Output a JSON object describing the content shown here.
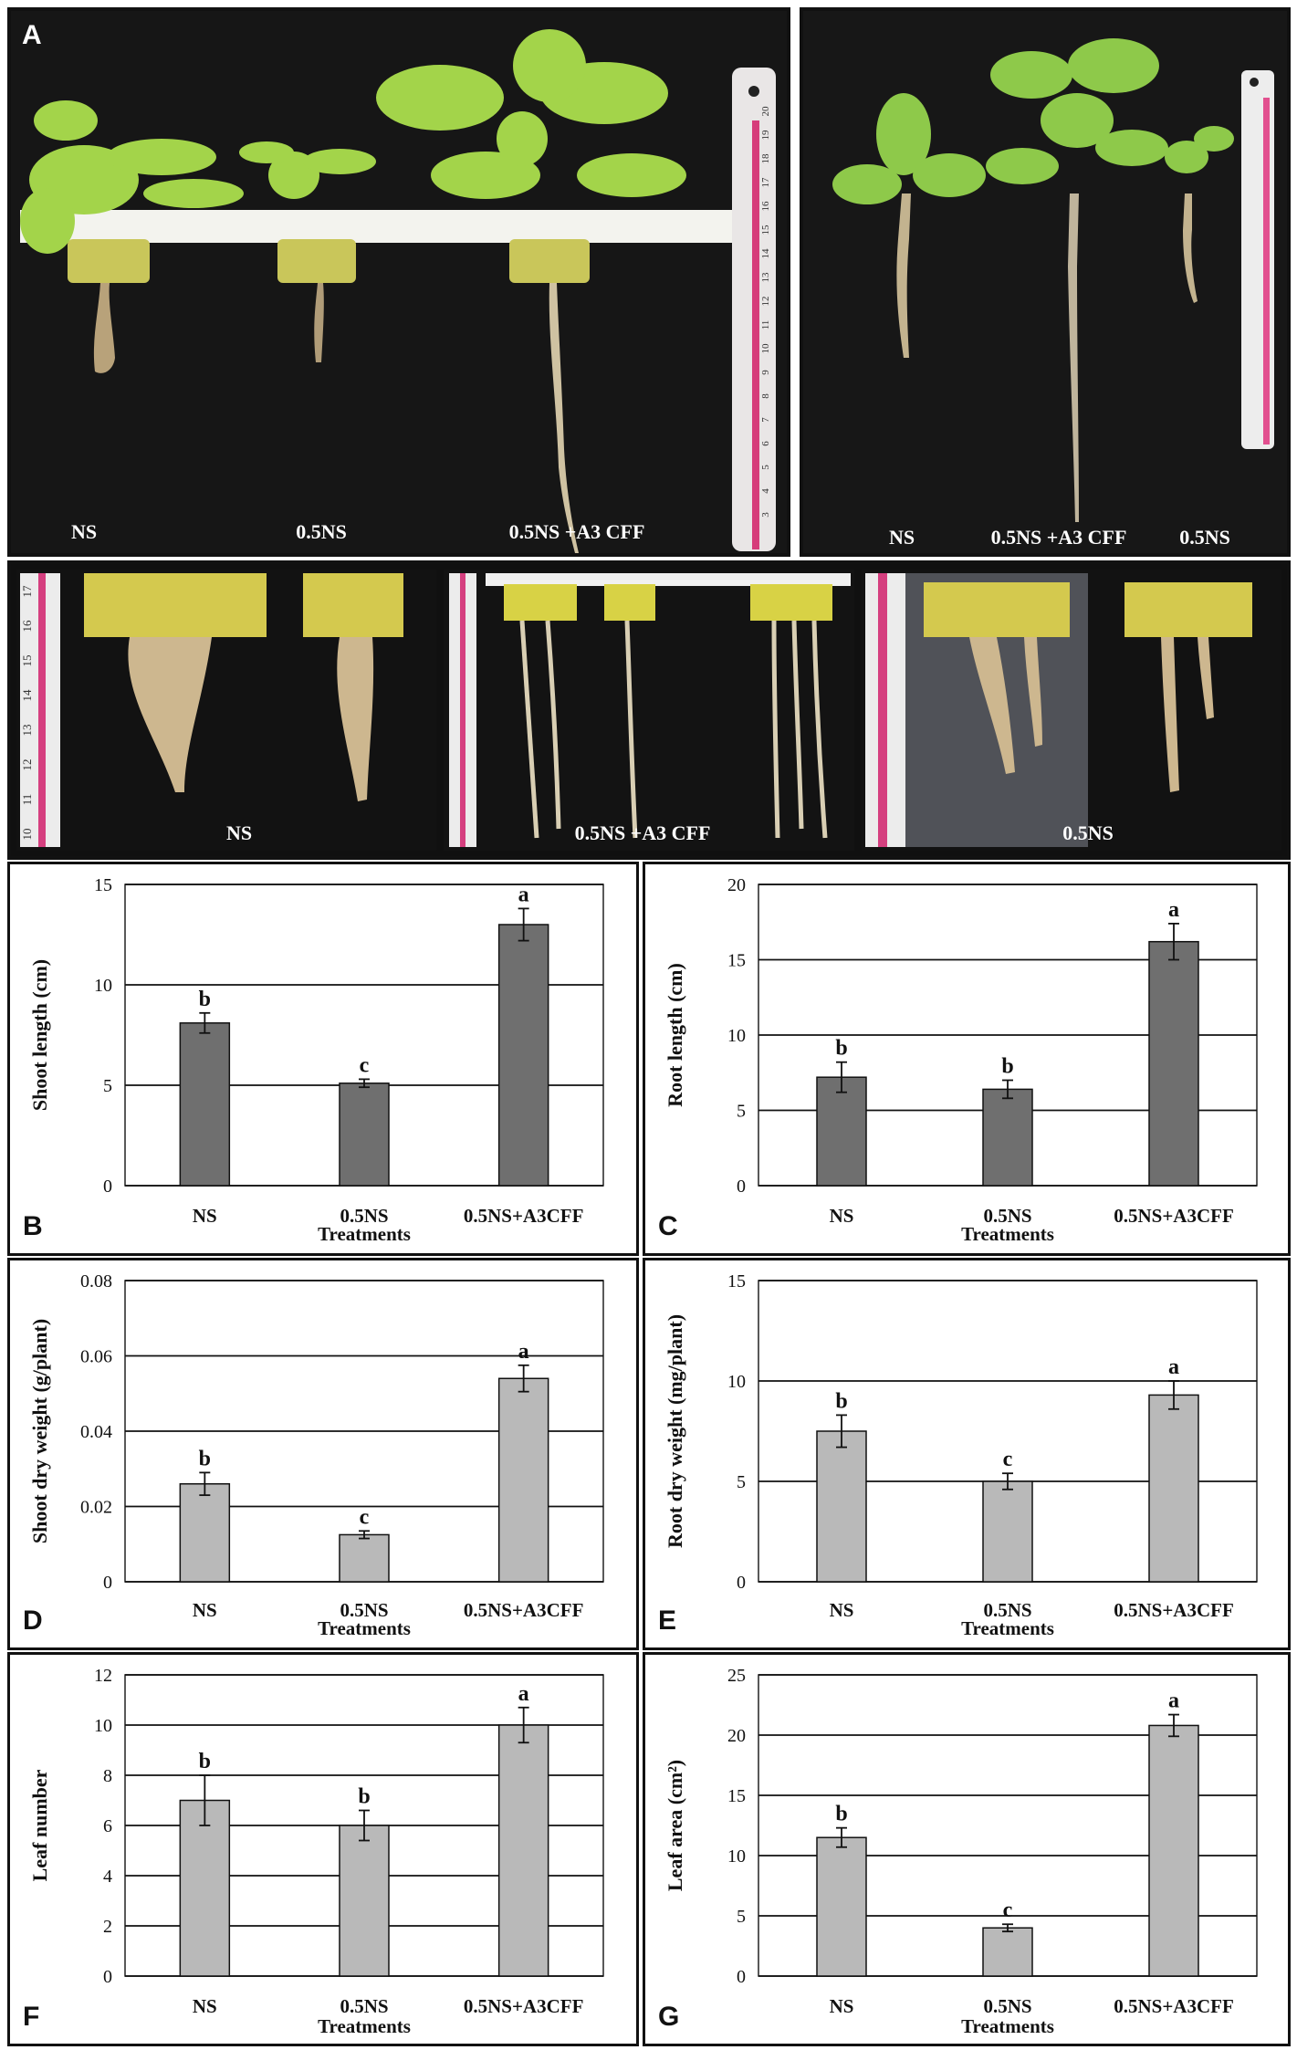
{
  "panel_letters": {
    "a": "A",
    "b": "B",
    "c": "C",
    "d": "D",
    "e": "E",
    "f": "F",
    "g": "G"
  },
  "photos": {
    "top_left_labels": [
      "NS",
      "0.5NS",
      "0.5NS +A3 CFF"
    ],
    "top_right_labels": [
      "NS",
      "0.5NS +A3 CFF",
      "0.5NS"
    ],
    "roots_labels": [
      "NS",
      "0.5NS +A3 CFF",
      "0.5NS"
    ],
    "ruler_top_left_ticks": [
      "20",
      "19",
      "18",
      "17",
      "16",
      "15",
      "14",
      "13",
      "12",
      "11",
      "10",
      "9",
      "8",
      "7",
      "6",
      "5",
      "4",
      "3"
    ],
    "ruler_roots_ticks": [
      "17",
      "16",
      "15",
      "14",
      "13",
      "12",
      "11",
      "10"
    ]
  },
  "colors": {
    "bar_dark": "#6f6f6f",
    "bar_light": "#b9b9b9",
    "background_photo": "#151515",
    "leaf_green": "#8cc63f"
  },
  "chart_data": [
    {
      "id": "B",
      "type": "bar",
      "ylabel": "Shoot length (cm)",
      "xlabel": "Treatments",
      "categories": [
        "NS",
        "0.5NS",
        "0.5NS+A3CFF"
      ],
      "values": [
        8.1,
        5.1,
        13.0
      ],
      "errors": [
        0.5,
        0.2,
        0.8
      ],
      "letters": [
        "b",
        "c",
        "a"
      ],
      "ylim": [
        0,
        15
      ],
      "yticks": [
        0,
        5,
        10,
        15
      ],
      "ytick_labels": [
        "0",
        "5",
        "10",
        "15"
      ],
      "grid": true
    },
    {
      "id": "C",
      "type": "bar",
      "ylabel": "Root length (cm)",
      "xlabel": "Treatments",
      "categories": [
        "NS",
        "0.5NS",
        "0.5NS+A3CFF"
      ],
      "values": [
        7.2,
        6.4,
        16.2
      ],
      "errors": [
        1.0,
        0.6,
        1.2
      ],
      "letters": [
        "b",
        "b",
        "a"
      ],
      "ylim": [
        0,
        20
      ],
      "yticks": [
        0,
        5,
        10,
        15,
        20
      ],
      "ytick_labels": [
        "0",
        "5",
        "10",
        "15",
        "20"
      ],
      "grid": true
    },
    {
      "id": "D",
      "type": "bar",
      "ylabel": "Shoot dry weight (g/plant)",
      "xlabel": "Treatments",
      "categories": [
        "NS",
        "0.5NS",
        "0.5NS+A3CFF"
      ],
      "values": [
        0.026,
        0.0125,
        0.054
      ],
      "errors": [
        0.003,
        0.001,
        0.0035
      ],
      "letters": [
        "b",
        "c",
        "a"
      ],
      "ylim": [
        0,
        0.08
      ],
      "yticks": [
        0,
        0.02,
        0.04,
        0.06,
        0.08
      ],
      "ytick_labels": [
        "0",
        "0.02",
        "0.04",
        "0.06",
        "0.08"
      ],
      "grid": true
    },
    {
      "id": "E",
      "type": "bar",
      "ylabel": "Root dry weight (mg/plant)",
      "xlabel": "Treatments",
      "categories": [
        "NS",
        "0.5NS",
        "0.5NS+A3CFF"
      ],
      "values": [
        7.5,
        5.0,
        9.3
      ],
      "errors": [
        0.8,
        0.4,
        0.7
      ],
      "letters": [
        "b",
        "c",
        "a"
      ],
      "ylim": [
        0,
        15
      ],
      "yticks": [
        0,
        5,
        10,
        15
      ],
      "ytick_labels": [
        "0",
        "5",
        "10",
        "15"
      ],
      "grid": true
    },
    {
      "id": "F",
      "type": "bar",
      "ylabel": "Leaf number",
      "xlabel": "Treatments",
      "categories": [
        "NS",
        "0.5NS",
        "0.5NS+A3CFF"
      ],
      "values": [
        7.0,
        6.0,
        10.0
      ],
      "errors": [
        1.0,
        0.6,
        0.7
      ],
      "letters": [
        "b",
        "b",
        "a"
      ],
      "ylim": [
        0,
        12
      ],
      "yticks": [
        0,
        2,
        4,
        6,
        8,
        10,
        12
      ],
      "ytick_labels": [
        "0",
        "2",
        "4",
        "6",
        "8",
        "10",
        "12"
      ],
      "grid": true
    },
    {
      "id": "G",
      "type": "bar",
      "ylabel": "Leaf area (cm²)",
      "xlabel": "Treatments",
      "categories": [
        "NS",
        "0.5NS",
        "0.5NS+A3CFF"
      ],
      "values": [
        11.5,
        4.0,
        20.8
      ],
      "errors": [
        0.8,
        0.3,
        0.9
      ],
      "letters": [
        "b",
        "c",
        "a"
      ],
      "ylim": [
        0,
        25
      ],
      "yticks": [
        0,
        5,
        10,
        15,
        20,
        25
      ],
      "ytick_labels": [
        "0",
        "5",
        "10",
        "15",
        "20",
        "25"
      ],
      "grid": true
    }
  ]
}
